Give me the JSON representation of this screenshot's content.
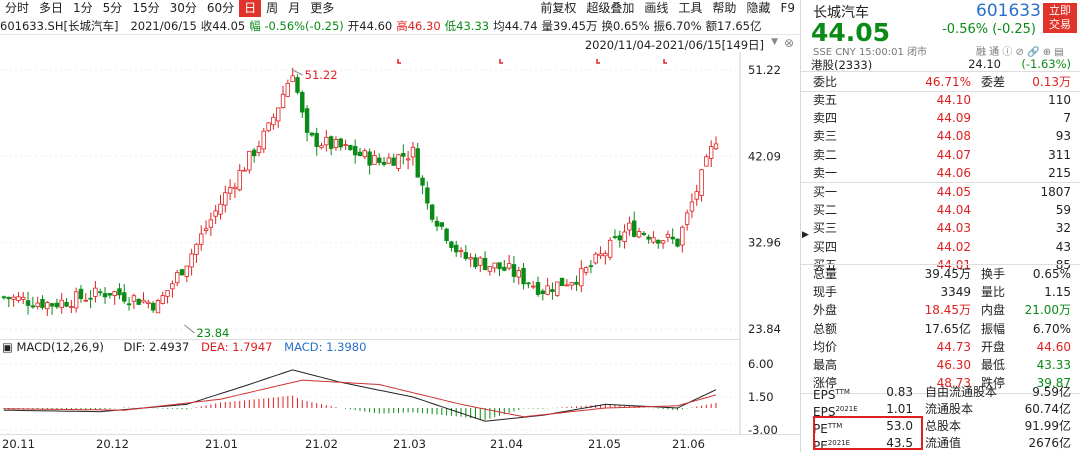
{
  "toolbar": {
    "left": [
      "分时",
      "多日",
      "1分",
      "5分",
      "15分",
      "30分",
      "60分",
      "日",
      "周",
      "月",
      "更多"
    ],
    "active_index": 7,
    "right": [
      "前复权",
      "超级叠加",
      "画线",
      "工具",
      "帮助",
      "隐藏"
    ]
  },
  "infobar": {
    "code_name": "601633.SH[长城汽车]",
    "date": "2021/06/15",
    "close": "收44.05",
    "amp": "幅 -0.56%(-0.25)",
    "open": "开44.60",
    "high": "高46.30",
    "low": "低43.33",
    "avg": "均44.74",
    "vol": "量39.45万",
    "turnover": "换0.65%",
    "swing": "振6.70%",
    "amount": "额17.65亿"
  },
  "range": {
    "label": "2020/11/04-2021/06/15[149日]",
    "arrow": "▼",
    "close": "⊗"
  },
  "price_axis": [
    "51.22",
    "42.09",
    "32.96",
    "23.84"
  ],
  "annotations": {
    "high": "51.22",
    "low": "23.84"
  },
  "macd_row": {
    "title": "MACD(12,26,9)",
    "dif": "DIF: 2.4937",
    "dea": "DEA: 1.7947",
    "macd": "MACD: 1.3980"
  },
  "macd_axis": [
    "6.00",
    "1.50",
    "-3.00"
  ],
  "x_axis": [
    "20.11",
    "20.12",
    "21.01",
    "21.02",
    "21.03",
    "21.04",
    "21.05",
    "21.06"
  ],
  "chart_data": {
    "type": "candlestick",
    "price_range": [
      23.84,
      51.22
    ],
    "high_mark": 51.22,
    "low_mark": 23.84,
    "macd_range": [
      -3.0,
      6.0
    ]
  },
  "panel": {
    "name": "长城汽车",
    "code": "601633",
    "trade_btn": [
      "立即",
      "交易"
    ],
    "price": "44.05",
    "change": "-0.56% (-0.25)",
    "exch": "SSE  CNY  15:00:01  闭市",
    "tools": "融  通  ⓘ  ⊘ 🔗 ⊕ ▤",
    "hk": {
      "label": "港股(2333)",
      "price": "24.10",
      "change": "(-1.63%)"
    },
    "weibi": {
      "l1": "委比",
      "v1": "46.71%",
      "l2": "委差",
      "v2": "0.13万"
    },
    "sells": [
      {
        "label": "卖五",
        "price": "44.10",
        "vol": "110"
      },
      {
        "label": "卖四",
        "price": "44.09",
        "vol": "7"
      },
      {
        "label": "卖三",
        "price": "44.08",
        "vol": "93"
      },
      {
        "label": "卖二",
        "price": "44.07",
        "vol": "311"
      },
      {
        "label": "卖一",
        "price": "44.06",
        "vol": "215"
      }
    ],
    "buys": [
      {
        "label": "买一",
        "price": "44.05",
        "vol": "1807"
      },
      {
        "label": "买二",
        "price": "44.04",
        "vol": "59"
      },
      {
        "label": "买三",
        "price": "44.03",
        "vol": "32"
      },
      {
        "label": "买四",
        "price": "44.02",
        "vol": "43"
      },
      {
        "label": "买五",
        "price": "44.01",
        "vol": "85"
      }
    ],
    "stats": [
      {
        "l1": "总量",
        "v1": "39.45万",
        "l2": "换手",
        "v2": "0.65%",
        "c1": "",
        "c2": ""
      },
      {
        "l1": "现手",
        "v1": "3349",
        "l2": "量比",
        "v2": "1.15",
        "c1": "",
        "c2": ""
      },
      {
        "l1": "外盘",
        "v1": "18.45万",
        "l2": "内盘",
        "v2": "21.00万",
        "c1": "r",
        "c2": "g"
      },
      {
        "l1": "总额",
        "v1": "17.65亿",
        "l2": "振幅",
        "v2": "6.70%",
        "c1": "",
        "c2": ""
      },
      {
        "l1": "均价",
        "v1": "44.73",
        "l2": "开盘",
        "v2": "44.60",
        "c1": "r",
        "c2": "r"
      },
      {
        "l1": "最高",
        "v1": "46.30",
        "l2": "最低",
        "v2": "43.33",
        "c1": "r",
        "c2": "g"
      },
      {
        "l1": "涨停",
        "v1": "48.73",
        "l2": "跌停",
        "v2": "39.87",
        "c1": "r",
        "c2": "g"
      }
    ],
    "fund": [
      {
        "l1": "EPS",
        "s1": "TTM",
        "v1": "0.83",
        "l2": "自由流通股本",
        "v2": "9.59亿"
      },
      {
        "l1": "EPS",
        "s1": "2021E",
        "v1": "1.01",
        "l2": "流通股本",
        "v2": "60.74亿"
      },
      {
        "l1": "PE",
        "s1": "TTM",
        "v1": "53.0",
        "l2": "总股本",
        "v2": "91.99亿"
      },
      {
        "l1": "PE",
        "s1": "2021E",
        "v1": "43.5",
        "l2": "流通值",
        "v2": "2676亿"
      }
    ]
  }
}
